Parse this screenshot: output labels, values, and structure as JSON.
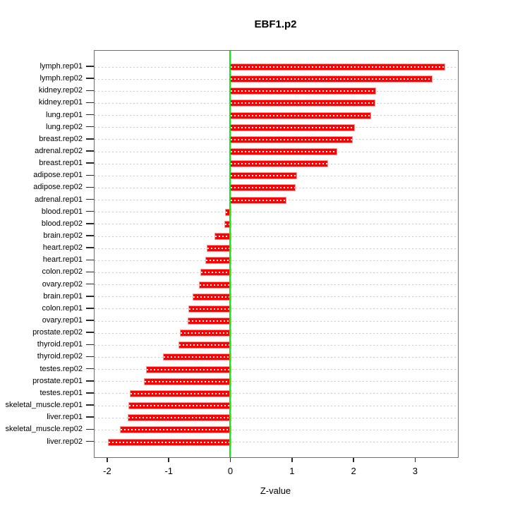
{
  "chart_data": {
    "type": "bar",
    "orientation": "horizontal",
    "title": "EBF1.p2",
    "xlabel": "Z-value",
    "categories": [
      "lymph.rep01",
      "lymph.rep02",
      "kidney.rep02",
      "kidney.rep01",
      "lung.rep01",
      "lung.rep02",
      "breast.rep02",
      "adrenal.rep02",
      "breast.rep01",
      "adipose.rep01",
      "adipose.rep02",
      "adrenal.rep01",
      "blood.rep01",
      "blood.rep02",
      "brain.rep02",
      "heart.rep02",
      "heart.rep01",
      "colon.rep02",
      "ovary.rep02",
      "brain.rep01",
      "colon.rep01",
      "ovary.rep01",
      "prostate.rep02",
      "thyroid.rep01",
      "thyroid.rep02",
      "testes.rep02",
      "prostate.rep01",
      "testes.rep01",
      "skeletal_muscle.rep01",
      "liver.rep01",
      "skeletal_muscle.rep02",
      "liver.rep02"
    ],
    "values": [
      3.47,
      3.27,
      2.35,
      2.34,
      2.27,
      2.01,
      1.97,
      1.72,
      1.57,
      1.06,
      1.04,
      0.89,
      -0.08,
      -0.09,
      -0.25,
      -0.38,
      -0.4,
      -0.48,
      -0.51,
      -0.61,
      -0.68,
      -0.69,
      -0.81,
      -0.84,
      -1.09,
      -1.36,
      -1.4,
      -1.63,
      -1.65,
      -1.66,
      -1.79,
      -1.98
    ],
    "xlim": [
      -2.2,
      3.7
    ],
    "xticks": [
      -2,
      -1,
      0,
      1,
      2,
      3
    ],
    "xtick_labels": [
      "-2",
      "-1",
      "0",
      "1",
      "2",
      "3"
    ],
    "grid": true,
    "legend": "none",
    "colors": {
      "bar_fill": "#fe0000",
      "bar_border": "#ff9999",
      "bar_stripe": "#ffffff",
      "zero_line": "#00ee00",
      "gridline": "#cbcbcb",
      "plot_border": "#6e6e6e",
      "text": "#000000",
      "background": "#ffffff"
    }
  }
}
